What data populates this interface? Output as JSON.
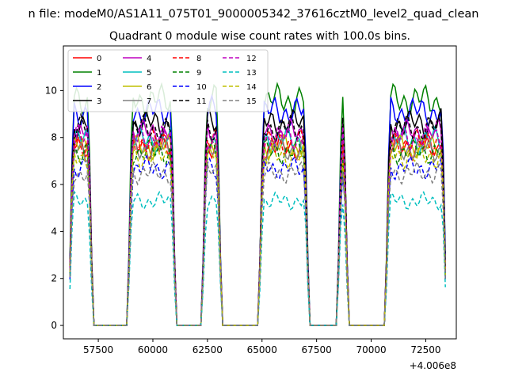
{
  "figure": {
    "suptitle": "n file: modeM0/AS1A11_075T01_9000005342_37616cztM0_level2_quad_clean",
    "title": "Quadrant 0 module wise count rates with 100.0s bins."
  },
  "chart_data": {
    "type": "line",
    "title": "Quadrant 0 module wise count rates with 100.0s bins.",
    "xlabel": "",
    "ylabel": "",
    "x_offset_label": "+4.006e8",
    "xlim": [
      55900,
      73900
    ],
    "ylim": [
      -0.57,
      11.9
    ],
    "x_ticks": [
      57500,
      60000,
      62500,
      65000,
      67500,
      70000,
      72500
    ],
    "x_tick_labels": [
      "57500",
      "60000",
      "62500",
      "65000",
      "67500",
      "70000",
      "72500"
    ],
    "y_ticks": [
      0,
      2,
      4,
      6,
      8,
      10
    ],
    "y_tick_labels": [
      "0",
      "2",
      "4",
      "6",
      "8",
      "10"
    ],
    "grid": false,
    "legend_position": "upper-left",
    "legend_columns": 4,
    "on_intervals": [
      [
        56200,
        57200
      ],
      [
        58900,
        61000
      ],
      [
        62300,
        63100
      ],
      [
        64900,
        67100
      ],
      [
        68500,
        68900
      ],
      [
        70700,
        73400
      ]
    ],
    "series": [
      {
        "name": "0",
        "color": "#ff0000",
        "dash": "solid",
        "level": 7.6
      },
      {
        "name": "1",
        "color": "#008000",
        "dash": "solid",
        "level": 9.6
      },
      {
        "name": "2",
        "color": "#0000ff",
        "dash": "solid",
        "level": 9.1
      },
      {
        "name": "3",
        "color": "#000000",
        "dash": "solid",
        "level": 8.6
      },
      {
        "name": "4",
        "color": "#bf00bf",
        "dash": "solid",
        "level": 8.2
      },
      {
        "name": "5",
        "color": "#00bfbf",
        "dash": "solid",
        "level": 7.9
      },
      {
        "name": "6",
        "color": "#bfbf00",
        "dash": "solid",
        "level": 7.6
      },
      {
        "name": "7",
        "color": "#808080",
        "dash": "solid",
        "level": 7.5
      },
      {
        "name": "8",
        "color": "#ff0000",
        "dash": "dashed",
        "level": 7.8
      },
      {
        "name": "9",
        "color": "#008000",
        "dash": "dashed",
        "level": 7.4
      },
      {
        "name": "10",
        "color": "#0000ff",
        "dash": "dashed",
        "level": 6.7
      },
      {
        "name": "11",
        "color": "#000000",
        "dash": "dashed",
        "level": 8.4
      },
      {
        "name": "12",
        "color": "#bf00bf",
        "dash": "dashed",
        "level": 8.0
      },
      {
        "name": "13",
        "color": "#00bfbf",
        "dash": "dashed",
        "level": 5.3
      },
      {
        "name": "14",
        "color": "#bfbf00",
        "dash": "dashed",
        "level": 7.2
      },
      {
        "name": "15",
        "color": "#808080",
        "dash": "dashed",
        "level": 6.5
      }
    ]
  }
}
